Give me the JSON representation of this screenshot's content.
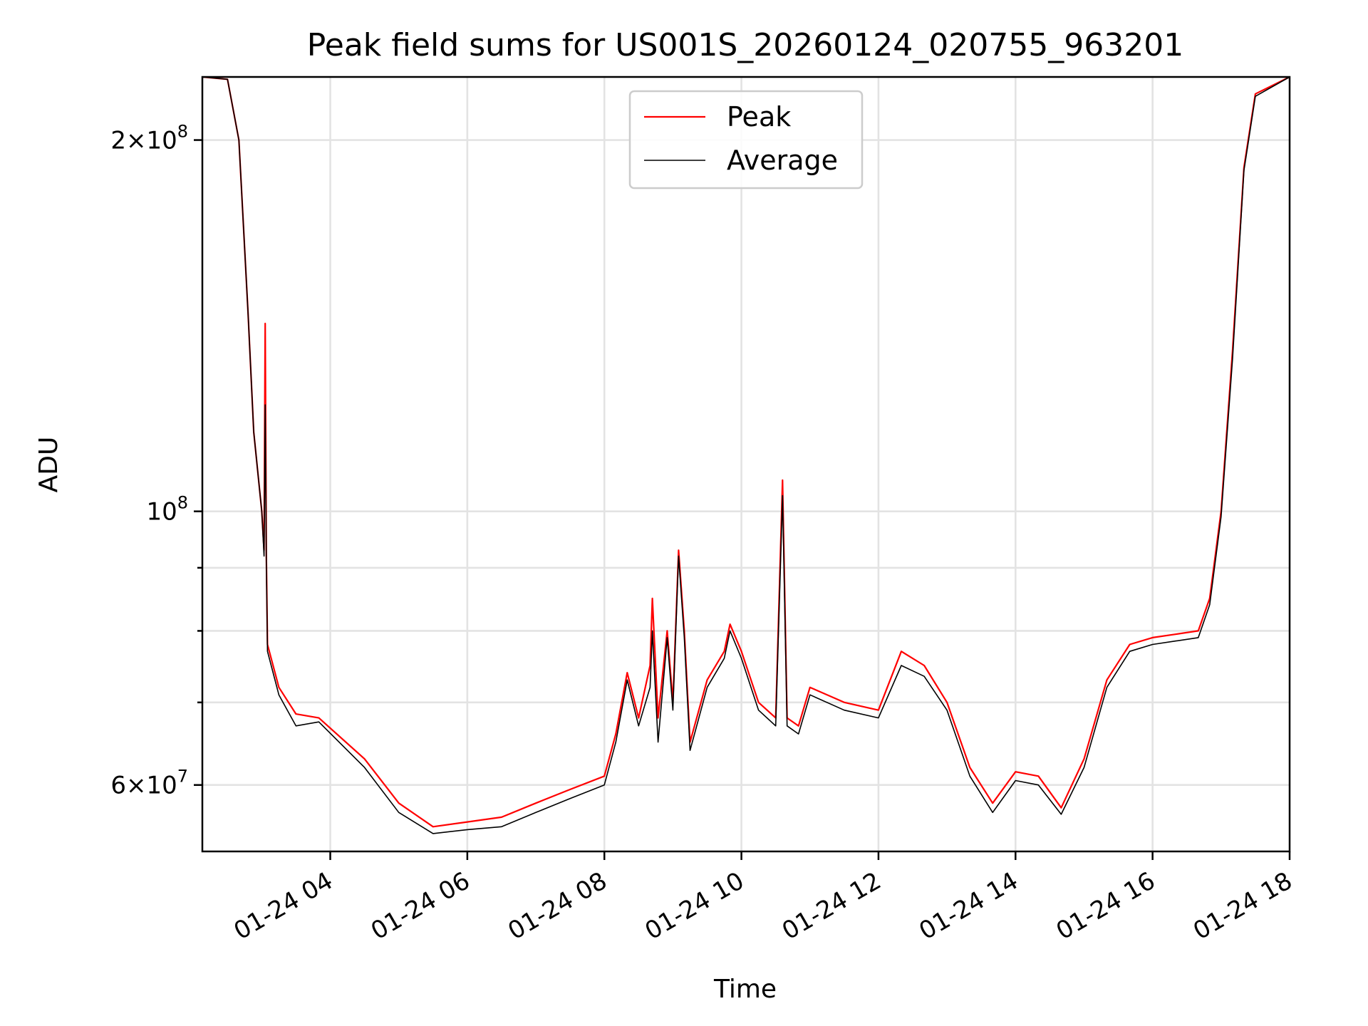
{
  "chart_data": {
    "type": "line",
    "title": "Peak field sums for US001S_20260124_020755_963201",
    "xlabel": "Time",
    "ylabel": "ADU",
    "yscale": "log",
    "xlim": [
      "2026-01-24 02:08",
      "2026-01-24 18:00"
    ],
    "ylim": [
      53000000,
      225000000
    ],
    "grid": true,
    "legend_position": "top-center",
    "x_ticks": [
      {
        "label": "01-24 04",
        "value": "2026-01-24 04:00"
      },
      {
        "label": "01-24 06",
        "value": "2026-01-24 06:00"
      },
      {
        "label": "01-24 08",
        "value": "2026-01-24 08:00"
      },
      {
        "label": "01-24 10",
        "value": "2026-01-24 10:00"
      },
      {
        "label": "01-24 12",
        "value": "2026-01-24 12:00"
      },
      {
        "label": "01-24 14",
        "value": "2026-01-24 14:00"
      },
      {
        "label": "01-24 16",
        "value": "2026-01-24 16:00"
      },
      {
        "label": "01-24 18",
        "value": "2026-01-24 18:00"
      }
    ],
    "y_ticks_major": [
      {
        "value": 60000000,
        "mantissa": "6",
        "exponent": "7"
      },
      {
        "value": 100000000,
        "mantissa": "",
        "exponent": "8"
      },
      {
        "value": 200000000,
        "mantissa": "2",
        "exponent": "8"
      }
    ],
    "y_ticks_minor": [
      70000000,
      80000000,
      90000000
    ],
    "series": [
      {
        "name": "Peak",
        "color": "#ff0000",
        "points": [
          [
            "2026-01-24 02:08",
            225000000
          ],
          [
            "2026-01-24 02:30",
            224000000
          ],
          [
            "2026-01-24 02:40",
            200000000
          ],
          [
            "2026-01-24 02:48",
            145000000
          ],
          [
            "2026-01-24 02:53",
            116000000
          ],
          [
            "2026-01-24 03:00",
            100000000
          ],
          [
            "2026-01-24 03:02",
            93000000
          ],
          [
            "2026-01-24 03:03",
            142000000
          ],
          [
            "2026-01-24 03:04",
            92000000
          ],
          [
            "2026-01-24 03:05",
            78000000
          ],
          [
            "2026-01-24 03:15",
            72000000
          ],
          [
            "2026-01-24 03:30",
            68500000
          ],
          [
            "2026-01-24 03:50",
            68000000
          ],
          [
            "2026-01-24 04:30",
            63000000
          ],
          [
            "2026-01-24 05:00",
            58000000
          ],
          [
            "2026-01-24 05:30",
            55500000
          ],
          [
            "2026-01-24 06:00",
            56000000
          ],
          [
            "2026-01-24 06:30",
            56500000
          ],
          [
            "2026-01-24 07:00",
            58000000
          ],
          [
            "2026-01-24 07:30",
            59500000
          ],
          [
            "2026-01-24 08:00",
            61000000
          ],
          [
            "2026-01-24 08:10",
            66000000
          ],
          [
            "2026-01-24 08:20",
            74000000
          ],
          [
            "2026-01-24 08:30",
            68000000
          ],
          [
            "2026-01-24 08:40",
            75000000
          ],
          [
            "2026-01-24 08:42",
            85000000
          ],
          [
            "2026-01-24 08:47",
            68000000
          ],
          [
            "2026-01-24 08:55",
            80000000
          ],
          [
            "2026-01-24 09:00",
            70000000
          ],
          [
            "2026-01-24 09:05",
            93000000
          ],
          [
            "2026-01-24 09:10",
            80000000
          ],
          [
            "2026-01-24 09:15",
            65000000
          ],
          [
            "2026-01-24 09:30",
            73000000
          ],
          [
            "2026-01-24 09:45",
            77000000
          ],
          [
            "2026-01-24 09:50",
            81000000
          ],
          [
            "2026-01-24 10:00",
            77000000
          ],
          [
            "2026-01-24 10:15",
            70000000
          ],
          [
            "2026-01-24 10:30",
            68000000
          ],
          [
            "2026-01-24 10:36",
            106000000
          ],
          [
            "2026-01-24 10:40",
            68000000
          ],
          [
            "2026-01-24 10:50",
            67000000
          ],
          [
            "2026-01-24 11:00",
            72000000
          ],
          [
            "2026-01-24 11:30",
            70000000
          ],
          [
            "2026-01-24 12:00",
            69000000
          ],
          [
            "2026-01-24 12:20",
            77000000
          ],
          [
            "2026-01-24 12:40",
            75000000
          ],
          [
            "2026-01-24 13:00",
            70000000
          ],
          [
            "2026-01-24 13:20",
            62000000
          ],
          [
            "2026-01-24 13:40",
            58000000
          ],
          [
            "2026-01-24 14:00",
            61500000
          ],
          [
            "2026-01-24 14:20",
            61000000
          ],
          [
            "2026-01-24 14:40",
            57500000
          ],
          [
            "2026-01-24 15:00",
            63000000
          ],
          [
            "2026-01-24 15:20",
            73000000
          ],
          [
            "2026-01-24 15:40",
            78000000
          ],
          [
            "2026-01-24 16:00",
            79000000
          ],
          [
            "2026-01-24 16:20",
            79500000
          ],
          [
            "2026-01-24 16:40",
            80000000
          ],
          [
            "2026-01-24 16:50",
            85000000
          ],
          [
            "2026-01-24 17:00",
            100000000
          ],
          [
            "2026-01-24 17:10",
            135000000
          ],
          [
            "2026-01-24 17:20",
            190000000
          ],
          [
            "2026-01-24 17:30",
            218000000
          ],
          [
            "2026-01-24 18:00",
            225000000
          ]
        ]
      },
      {
        "name": "Average",
        "color": "#000000",
        "points": [
          [
            "2026-01-24 02:08",
            225000000
          ],
          [
            "2026-01-24 02:30",
            224000000
          ],
          [
            "2026-01-24 02:40",
            200000000
          ],
          [
            "2026-01-24 02:48",
            145000000
          ],
          [
            "2026-01-24 02:53",
            116000000
          ],
          [
            "2026-01-24 03:00",
            100000000
          ],
          [
            "2026-01-24 03:02",
            92000000
          ],
          [
            "2026-01-24 03:03",
            122000000
          ],
          [
            "2026-01-24 03:04",
            91000000
          ],
          [
            "2026-01-24 03:05",
            77000000
          ],
          [
            "2026-01-24 03:15",
            71000000
          ],
          [
            "2026-01-24 03:30",
            67000000
          ],
          [
            "2026-01-24 03:50",
            67500000
          ],
          [
            "2026-01-24 04:30",
            62000000
          ],
          [
            "2026-01-24 05:00",
            57000000
          ],
          [
            "2026-01-24 05:30",
            54800000
          ],
          [
            "2026-01-24 06:00",
            55200000
          ],
          [
            "2026-01-24 06:30",
            55500000
          ],
          [
            "2026-01-24 07:00",
            57000000
          ],
          [
            "2026-01-24 07:30",
            58500000
          ],
          [
            "2026-01-24 08:00",
            60000000
          ],
          [
            "2026-01-24 08:10",
            65000000
          ],
          [
            "2026-01-24 08:20",
            73000000
          ],
          [
            "2026-01-24 08:30",
            67000000
          ],
          [
            "2026-01-24 08:40",
            72000000
          ],
          [
            "2026-01-24 08:42",
            80000000
          ],
          [
            "2026-01-24 08:47",
            65000000
          ],
          [
            "2026-01-24 08:55",
            79000000
          ],
          [
            "2026-01-24 09:00",
            69000000
          ],
          [
            "2026-01-24 09:05",
            92000000
          ],
          [
            "2026-01-24 09:10",
            79000000
          ],
          [
            "2026-01-24 09:15",
            64000000
          ],
          [
            "2026-01-24 09:30",
            72000000
          ],
          [
            "2026-01-24 09:45",
            76000000
          ],
          [
            "2026-01-24 09:50",
            80000000
          ],
          [
            "2026-01-24 10:00",
            76000000
          ],
          [
            "2026-01-24 10:15",
            69000000
          ],
          [
            "2026-01-24 10:30",
            67000000
          ],
          [
            "2026-01-24 10:36",
            103000000
          ],
          [
            "2026-01-24 10:40",
            67000000
          ],
          [
            "2026-01-24 10:50",
            66000000
          ],
          [
            "2026-01-24 11:00",
            71000000
          ],
          [
            "2026-01-24 11:30",
            69000000
          ],
          [
            "2026-01-24 12:00",
            68000000
          ],
          [
            "2026-01-24 12:20",
            75000000
          ],
          [
            "2026-01-24 12:40",
            73500000
          ],
          [
            "2026-01-24 13:00",
            69000000
          ],
          [
            "2026-01-24 13:20",
            61000000
          ],
          [
            "2026-01-24 13:40",
            57000000
          ],
          [
            "2026-01-24 14:00",
            60500000
          ],
          [
            "2026-01-24 14:20",
            60000000
          ],
          [
            "2026-01-24 14:40",
            56800000
          ],
          [
            "2026-01-24 15:00",
            62000000
          ],
          [
            "2026-01-24 15:20",
            72000000
          ],
          [
            "2026-01-24 15:40",
            77000000
          ],
          [
            "2026-01-24 16:00",
            78000000
          ],
          [
            "2026-01-24 16:20",
            78500000
          ],
          [
            "2026-01-24 16:40",
            79000000
          ],
          [
            "2026-01-24 16:50",
            84000000
          ],
          [
            "2026-01-24 17:00",
            99000000
          ],
          [
            "2026-01-24 17:10",
            133000000
          ],
          [
            "2026-01-24 17:20",
            189000000
          ],
          [
            "2026-01-24 17:30",
            217000000
          ],
          [
            "2026-01-24 18:00",
            225000000
          ]
        ]
      }
    ]
  }
}
